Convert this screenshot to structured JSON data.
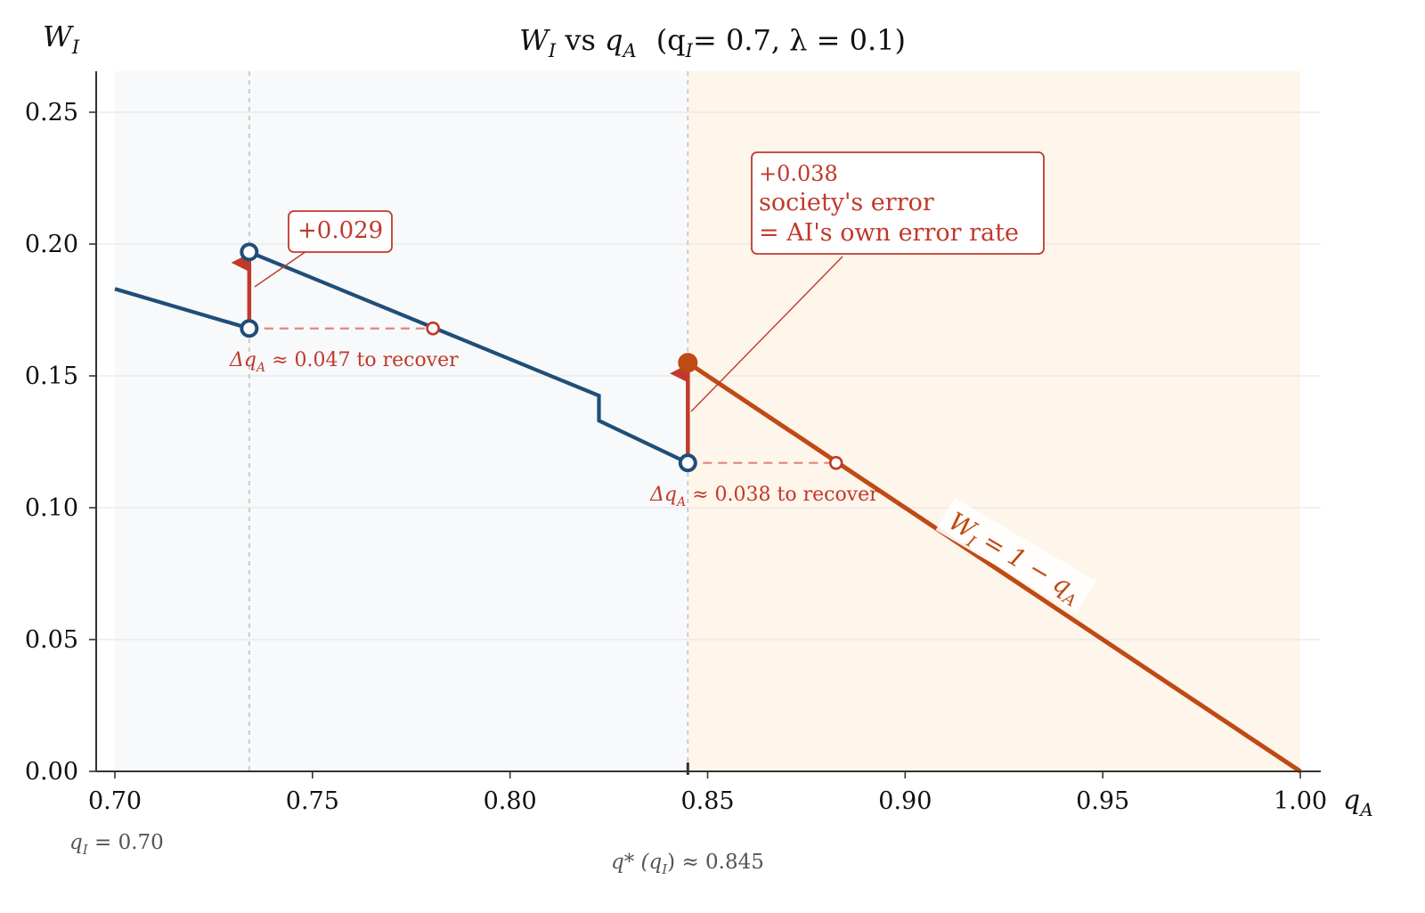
{
  "chart_data": {
    "type": "line",
    "title": "W_I vs q_A (q_I = 0.7, λ = 0.1)",
    "title_parts": {
      "main": "W",
      "main_sub": "I",
      "vs": " vs ",
      "var": "q",
      "var_sub": "A",
      "params": "(q",
      "params_sub": "I",
      "params_rest": "= 0.7,  λ = 0.1)"
    },
    "ylabel": {
      "main": "W",
      "sub": "I"
    },
    "xlabel": {
      "main": "q",
      "sub": "A"
    },
    "xlim": [
      0.695,
      1.005
    ],
    "ylim": [
      0.0,
      0.265
    ],
    "x_ticks": [
      0.7,
      0.75,
      0.8,
      0.85,
      0.9,
      0.95,
      1.0
    ],
    "x_tick_labels": [
      "0.70",
      "0.75",
      "0.80",
      "0.85",
      "0.90",
      "0.95",
      "1.00"
    ],
    "y_ticks": [
      0.0,
      0.05,
      0.1,
      0.15,
      0.2,
      0.25
    ],
    "y_tick_labels": [
      "0.00",
      "0.05",
      "0.10",
      "0.15",
      "0.20",
      "0.25"
    ],
    "grid": true,
    "colors": {
      "blue": "#1f4e79",
      "orange": "#bf4a14",
      "red": "#c0392b",
      "left_bg": "#f7f9fb",
      "right_bg": "#fef5eb"
    },
    "regions": [
      {
        "x0": 0.7,
        "x1": 0.845,
        "color": "#f7f9fb"
      },
      {
        "x0": 0.845,
        "x1": 1.0,
        "color": "#fef5eb"
      }
    ],
    "series": [
      {
        "color": "#1f4e79",
        "points": [
          [
            0.7,
            0.183
          ],
          [
            0.734,
            0.168
          ]
        ]
      },
      {
        "color": "#1f4e79",
        "points": [
          [
            0.734,
            0.197
          ],
          [
            0.8225,
            0.1425
          ],
          [
            0.8225,
            0.133
          ],
          [
            0.845,
            0.117
          ]
        ]
      },
      {
        "color": "#bf4a14",
        "points": [
          [
            0.845,
            0.155
          ],
          [
            1.0,
            0.0
          ]
        ]
      }
    ],
    "vlines": [
      0.734,
      0.845
    ],
    "markers": [
      {
        "x": 0.734,
        "y": 0.197,
        "type": "open",
        "color": "#1f4e79"
      },
      {
        "x": 0.734,
        "y": 0.168,
        "type": "open",
        "color": "#1f4e79"
      },
      {
        "x": 0.845,
        "y": 0.117,
        "type": "open",
        "color": "#1f4e79"
      },
      {
        "x": 0.845,
        "y": 0.155,
        "type": "filled",
        "color": "#bf4a14"
      },
      {
        "x": 0.7805,
        "y": 0.168,
        "type": "open-small",
        "color": "#c0392b"
      },
      {
        "x": 0.8825,
        "y": 0.117,
        "type": "open-small",
        "color": "#c0392b"
      }
    ],
    "jump_arrows": [
      {
        "x": 0.734,
        "y0": 0.168,
        "y1": 0.197
      },
      {
        "x": 0.845,
        "y0": 0.117,
        "y1": 0.155
      }
    ],
    "recover_lines": [
      {
        "y": 0.168,
        "x0": 0.734,
        "x1": 0.7805
      },
      {
        "y": 0.117,
        "x0": 0.845,
        "x1": 0.8825
      }
    ],
    "annotations": {
      "jump1": {
        "text": "+0.029"
      },
      "jump2": {
        "value": "+0.038",
        "line1": "society's error",
        "line2": "= AI's own error rate"
      },
      "recover1": {
        "pre": "Δq",
        "sub": "A",
        "post": " ≈ 0.047 to recover"
      },
      "recover2": {
        "pre": "Δq",
        "sub": "A",
        "post": " ≈ 0.038 to recover"
      },
      "line_label": {
        "pre": "W",
        "sub": "I",
        "mid": " = 1 − q",
        "sub2": "A"
      },
      "below_left": {
        "pre": "q",
        "sub": "I",
        "post": " = 0.70"
      },
      "below_threshold": {
        "pre": "q* (q",
        "sub": "I",
        "post": ") ≈ 0.845"
      }
    }
  }
}
